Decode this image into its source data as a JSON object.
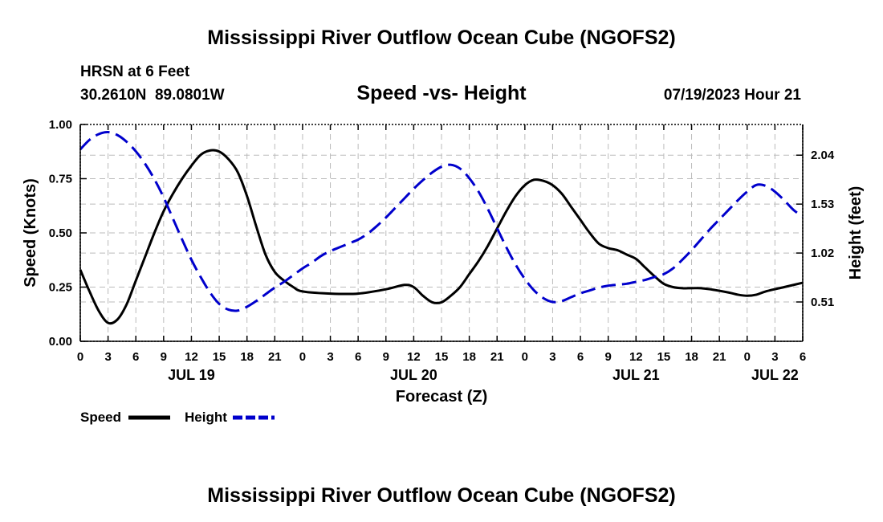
{
  "chart_data": {
    "type": "line",
    "title": "Mississippi River Outflow Ocean Cube (NGOFS2)",
    "footer_title": "Mississippi River Outflow Ocean Cube (NGOFS2)",
    "station": "HRSN at 6 Feet",
    "coords": "30.2610N  89.0801W",
    "subtitle": "Speed -vs- Height",
    "datetime": "07/19/2023 Hour 21",
    "xlabel": "Forecast (Z)",
    "ylabel": "Speed (Knots)",
    "y2label": "Height (feet)",
    "xlim": [
      0,
      78
    ],
    "ylim": [
      0,
      1.0
    ],
    "y2lim": [
      0.1,
      2.36
    ],
    "hour_ticks": [
      "0",
      "3",
      "6",
      "9",
      "12",
      "15",
      "18",
      "21",
      "0",
      "3",
      "6",
      "9",
      "12",
      "15",
      "18",
      "21",
      "0",
      "3",
      "6",
      "9",
      "12",
      "15",
      "18",
      "21",
      "0",
      "3",
      "6"
    ],
    "y_ticks": [
      {
        "value": 0.0,
        "label": "0.00"
      },
      {
        "value": 0.25,
        "label": "0.25"
      },
      {
        "value": 0.5,
        "label": "0.50"
      },
      {
        "value": 0.75,
        "label": "0.75"
      },
      {
        "value": 1.0,
        "label": "1.00"
      }
    ],
    "y2_ticks": [
      {
        "value": 0.51,
        "label": "0.51"
      },
      {
        "value": 1.02,
        "label": "1.02"
      },
      {
        "value": 1.53,
        "label": "1.53"
      },
      {
        "value": 2.04,
        "label": "2.04"
      }
    ],
    "date_labels": [
      {
        "hour": 12,
        "label": "JUL 19"
      },
      {
        "hour": 36,
        "label": "JUL 20"
      },
      {
        "hour": 60,
        "label": "JUL 21"
      },
      {
        "hour": 75,
        "label": "JUL 22"
      }
    ],
    "series": [
      {
        "name": "Speed",
        "axis": "left",
        "color": "#000000",
        "dash": "solid",
        "points": [
          [
            0,
            0.33
          ],
          [
            1,
            0.23
          ],
          [
            2,
            0.14
          ],
          [
            3,
            0.085
          ],
          [
            4,
            0.1
          ],
          [
            5,
            0.17
          ],
          [
            6,
            0.28
          ],
          [
            7,
            0.39
          ],
          [
            8,
            0.5
          ],
          [
            9,
            0.6
          ],
          [
            10,
            0.68
          ],
          [
            11,
            0.75
          ],
          [
            12,
            0.81
          ],
          [
            13,
            0.86
          ],
          [
            14,
            0.88
          ],
          [
            15,
            0.875
          ],
          [
            16,
            0.84
          ],
          [
            17,
            0.78
          ],
          [
            18,
            0.67
          ],
          [
            19,
            0.53
          ],
          [
            20,
            0.4
          ],
          [
            21,
            0.32
          ],
          [
            22,
            0.28
          ],
          [
            23,
            0.25
          ],
          [
            24,
            0.23
          ],
          [
            27,
            0.22
          ],
          [
            30,
            0.22
          ],
          [
            33,
            0.24
          ],
          [
            35,
            0.26
          ],
          [
            36,
            0.25
          ],
          [
            37,
            0.21
          ],
          [
            38,
            0.18
          ],
          [
            39,
            0.18
          ],
          [
            40,
            0.21
          ],
          [
            41,
            0.25
          ],
          [
            42,
            0.31
          ],
          [
            43,
            0.37
          ],
          [
            44,
            0.44
          ],
          [
            45,
            0.52
          ],
          [
            46,
            0.6
          ],
          [
            47,
            0.67
          ],
          [
            48,
            0.72
          ],
          [
            49,
            0.745
          ],
          [
            50,
            0.74
          ],
          [
            51,
            0.72
          ],
          [
            52,
            0.68
          ],
          [
            53,
            0.62
          ],
          [
            54,
            0.56
          ],
          [
            55,
            0.5
          ],
          [
            56,
            0.45
          ],
          [
            57,
            0.43
          ],
          [
            58,
            0.42
          ],
          [
            59,
            0.4
          ],
          [
            60,
            0.38
          ],
          [
            61,
            0.34
          ],
          [
            62,
            0.3
          ],
          [
            63,
            0.265
          ],
          [
            64,
            0.25
          ],
          [
            65,
            0.245
          ],
          [
            66,
            0.245
          ],
          [
            67,
            0.245
          ],
          [
            68,
            0.24
          ],
          [
            70,
            0.225
          ],
          [
            71,
            0.215
          ],
          [
            72,
            0.21
          ],
          [
            73,
            0.215
          ],
          [
            74,
            0.23
          ],
          [
            76,
            0.25
          ],
          [
            78,
            0.27
          ]
        ]
      },
      {
        "name": "Height",
        "axis": "right",
        "color": "#0000cc",
        "dash": "dashed",
        "points": [
          [
            0,
            2.1
          ],
          [
            1,
            2.2
          ],
          [
            2,
            2.26
          ],
          [
            3,
            2.28
          ],
          [
            4,
            2.25
          ],
          [
            5,
            2.18
          ],
          [
            6,
            2.08
          ],
          [
            7,
            1.95
          ],
          [
            8,
            1.79
          ],
          [
            9,
            1.6
          ],
          [
            10,
            1.38
          ],
          [
            11,
            1.16
          ],
          [
            12,
            0.95
          ],
          [
            13,
            0.77
          ],
          [
            14,
            0.61
          ],
          [
            15,
            0.49
          ],
          [
            16,
            0.43
          ],
          [
            17,
            0.42
          ],
          [
            18,
            0.46
          ],
          [
            19,
            0.52
          ],
          [
            20,
            0.59
          ],
          [
            21,
            0.66
          ],
          [
            22,
            0.72
          ],
          [
            23,
            0.79
          ],
          [
            24,
            0.86
          ],
          [
            25,
            0.92
          ],
          [
            26,
            0.99
          ],
          [
            27,
            1.04
          ],
          [
            28,
            1.08
          ],
          [
            29,
            1.12
          ],
          [
            30,
            1.16
          ],
          [
            31,
            1.22
          ],
          [
            32,
            1.3
          ],
          [
            33,
            1.39
          ],
          [
            34,
            1.49
          ],
          [
            35,
            1.59
          ],
          [
            36,
            1.69
          ],
          [
            37,
            1.78
          ],
          [
            38,
            1.86
          ],
          [
            39,
            1.92
          ],
          [
            40,
            1.94
          ],
          [
            41,
            1.9
          ],
          [
            42,
            1.8
          ],
          [
            43,
            1.66
          ],
          [
            44,
            1.48
          ],
          [
            45,
            1.28
          ],
          [
            46,
            1.08
          ],
          [
            47,
            0.9
          ],
          [
            48,
            0.75
          ],
          [
            49,
            0.63
          ],
          [
            50,
            0.55
          ],
          [
            51,
            0.51
          ],
          [
            52,
            0.52
          ],
          [
            53,
            0.56
          ],
          [
            54,
            0.6
          ],
          [
            55,
            0.63
          ],
          [
            56,
            0.66
          ],
          [
            57,
            0.68
          ],
          [
            58,
            0.69
          ],
          [
            59,
            0.7
          ],
          [
            60,
            0.72
          ],
          [
            61,
            0.74
          ],
          [
            62,
            0.77
          ],
          [
            63,
            0.8
          ],
          [
            64,
            0.86
          ],
          [
            65,
            0.95
          ],
          [
            66,
            1.05
          ],
          [
            67,
            1.16
          ],
          [
            68,
            1.27
          ],
          [
            69,
            1.37
          ],
          [
            70,
            1.47
          ],
          [
            71,
            1.57
          ],
          [
            72,
            1.66
          ],
          [
            73,
            1.73
          ],
          [
            74,
            1.72
          ],
          [
            75,
            1.66
          ],
          [
            76,
            1.57
          ],
          [
            77,
            1.47
          ],
          [
            78,
            1.4
          ]
        ]
      }
    ],
    "legend": {
      "position": "bottom-left",
      "items": [
        {
          "label": "Speed",
          "color": "#000000",
          "dash": "solid"
        },
        {
          "label": "Height",
          "color": "#0000cc",
          "dash": "dashed"
        }
      ]
    },
    "grid": true
  }
}
